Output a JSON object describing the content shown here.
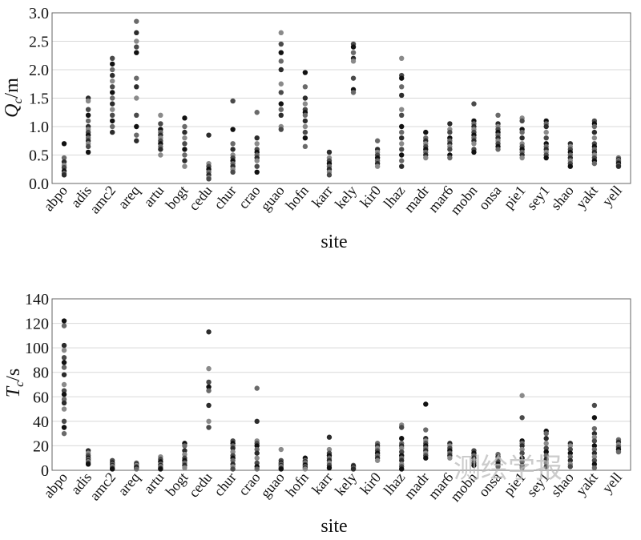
{
  "chart_data": [
    {
      "type": "scatter",
      "ylabel_main": "Q",
      "ylabel_sub": "c",
      "ylabel_unit": "/m",
      "xlabel": "site",
      "ylim": [
        0,
        3.0
      ],
      "yticks": [
        "0.0",
        "0.5",
        "1.0",
        "1.5",
        "2.0",
        "2.5",
        "3.0"
      ],
      "grid": true,
      "categories": [
        "abpo",
        "adis",
        "amc2",
        "areq",
        "artu",
        "bogt",
        "cedu",
        "chur",
        "crao",
        "guao",
        "hofn",
        "karr",
        "kely",
        "kir0",
        "lhaz",
        "madr",
        "mar6",
        "mobn",
        "onsa",
        "pie1",
        "sey1",
        "shao",
        "yakt",
        "yell"
      ],
      "values": [
        [
          0.7,
          0.45,
          0.38,
          0.32,
          0.28,
          0.22,
          0.18,
          0.15
        ],
        [
          1.5,
          1.45,
          1.3,
          1.2,
          1.1,
          1.0,
          0.95,
          0.9,
          0.85,
          0.8,
          0.75,
          0.7,
          0.65,
          0.55
        ],
        [
          2.2,
          2.1,
          2.0,
          1.9,
          1.8,
          1.7,
          1.6,
          1.5,
          1.4,
          1.3,
          1.2,
          1.1,
          1.0,
          0.9
        ],
        [
          2.85,
          2.65,
          2.5,
          2.4,
          2.3,
          1.85,
          1.7,
          1.5,
          1.2,
          1.0,
          0.85,
          0.75
        ],
        [
          1.2,
          1.05,
          0.95,
          0.9,
          0.85,
          0.8,
          0.75,
          0.7,
          0.65,
          0.6,
          0.5
        ],
        [
          1.15,
          1.0,
          0.9,
          0.8,
          0.7,
          0.6,
          0.5,
          0.4,
          0.3
        ],
        [
          0.85,
          0.35,
          0.3,
          0.25,
          0.2,
          0.15,
          0.1,
          0.08
        ],
        [
          1.45,
          0.95,
          0.7,
          0.6,
          0.5,
          0.45,
          0.4,
          0.35,
          0.3,
          0.25,
          0.2
        ],
        [
          1.25,
          0.8,
          0.7,
          0.6,
          0.55,
          0.5,
          0.45,
          0.4,
          0.3,
          0.2
        ],
        [
          2.65,
          2.45,
          2.3,
          2.15,
          2.0,
          1.75,
          1.6,
          1.4,
          1.3,
          1.2,
          1.0,
          0.95
        ],
        [
          1.95,
          1.7,
          1.5,
          1.4,
          1.3,
          1.25,
          1.2,
          1.1,
          1.0,
          0.9,
          0.8,
          0.65
        ],
        [
          0.55,
          0.45,
          0.4,
          0.35,
          0.3,
          0.25,
          0.2,
          0.15
        ],
        [
          2.45,
          2.4,
          2.3,
          2.2,
          2.15,
          1.85,
          1.65,
          1.6
        ],
        [
          0.75,
          0.6,
          0.55,
          0.5,
          0.45,
          0.4,
          0.35,
          0.3
        ],
        [
          2.2,
          1.9,
          1.85,
          1.7,
          1.55,
          1.3,
          1.2,
          1.0,
          0.9,
          0.8,
          0.7,
          0.6,
          0.5,
          0.4,
          0.3
        ],
        [
          0.9,
          0.8,
          0.75,
          0.7,
          0.65,
          0.6,
          0.55,
          0.5,
          0.45
        ],
        [
          1.05,
          0.95,
          0.9,
          0.8,
          0.75,
          0.7,
          0.65,
          0.6,
          0.5,
          0.45
        ],
        [
          1.4,
          1.1,
          1.05,
          1.0,
          0.95,
          0.9,
          0.85,
          0.8,
          0.75,
          0.7,
          0.6,
          0.55
        ],
        [
          1.2,
          1.05,
          1.0,
          0.95,
          0.9,
          0.85,
          0.8,
          0.75,
          0.7,
          0.65,
          0.6
        ],
        [
          1.15,
          1.1,
          0.95,
          0.9,
          0.8,
          0.7,
          0.65,
          0.6,
          0.55,
          0.5,
          0.45
        ],
        [
          1.1,
          1.05,
          1.0,
          0.9,
          0.8,
          0.7,
          0.65,
          0.6,
          0.55,
          0.5,
          0.45
        ],
        [
          0.7,
          0.65,
          0.6,
          0.55,
          0.5,
          0.45,
          0.4,
          0.35,
          0.3
        ],
        [
          1.1,
          1.05,
          1.0,
          0.9,
          0.8,
          0.7,
          0.65,
          0.6,
          0.55,
          0.5,
          0.45,
          0.4,
          0.35
        ],
        [
          0.45,
          0.42,
          0.4,
          0.38,
          0.35,
          0.32,
          0.3
        ]
      ]
    },
    {
      "type": "scatter",
      "ylabel_main": "T",
      "ylabel_sub": "c",
      "ylabel_unit": "/s",
      "xlabel": "site",
      "ylim": [
        0,
        140
      ],
      "yticks": [
        "0",
        "20",
        "40",
        "60",
        "80",
        "100",
        "120",
        "140"
      ],
      "grid": true,
      "categories": [
        "abpo",
        "adis",
        "amc2",
        "areq",
        "artu",
        "bogt",
        "cedu",
        "chur",
        "crao",
        "guao",
        "hofn",
        "karr",
        "kely",
        "kir0",
        "lhaz",
        "madr",
        "mar6",
        "mobn",
        "onsa",
        "pie1",
        "sey1",
        "shao",
        "yakt",
        "yell"
      ],
      "values": [
        [
          122,
          118,
          102,
          98,
          92,
          88,
          84,
          78,
          70,
          65,
          62,
          58,
          55,
          50,
          40,
          35,
          30
        ],
        [
          16,
          14,
          12,
          10,
          9,
          8,
          7,
          6,
          5
        ],
        [
          8,
          6,
          5,
          4,
          3,
          2,
          1
        ],
        [
          6,
          5,
          4,
          3,
          2,
          1
        ],
        [
          11,
          9,
          7,
          5,
          4,
          3,
          2,
          1
        ],
        [
          22,
          20,
          16,
          13,
          10,
          8,
          6,
          4,
          2
        ],
        [
          113,
          83,
          72,
          68,
          65,
          53,
          40,
          35
        ],
        [
          24,
          22,
          20,
          18,
          15,
          12,
          10,
          8,
          5,
          3,
          1
        ],
        [
          67,
          40,
          24,
          22,
          20,
          17,
          14,
          10,
          6,
          3,
          1
        ],
        [
          17,
          8,
          6,
          5,
          4,
          3,
          2,
          1
        ],
        [
          10,
          8,
          7,
          6,
          5,
          4,
          3,
          2,
          1
        ],
        [
          27,
          17,
          14,
          12,
          10,
          8,
          6,
          4,
          2
        ],
        [
          4,
          3,
          2,
          1
        ],
        [
          22,
          20,
          18,
          16,
          14,
          12,
          10,
          8
        ],
        [
          37,
          35,
          26,
          22,
          20,
          18,
          15,
          12,
          10,
          8,
          5,
          3,
          1
        ],
        [
          54,
          33,
          26,
          24,
          22,
          20,
          18,
          16,
          14,
          12,
          10
        ],
        [
          22,
          20,
          18,
          16,
          14,
          12,
          10
        ],
        [
          16,
          14,
          12,
          10,
          8,
          6,
          4
        ],
        [
          13,
          11,
          9,
          7,
          5,
          3
        ],
        [
          61,
          43,
          24,
          22,
          20,
          17,
          14,
          10,
          7,
          4,
          2
        ],
        [
          32,
          30,
          26,
          22,
          18,
          15,
          12,
          9,
          6,
          3
        ],
        [
          22,
          20,
          17,
          14,
          11,
          8,
          5,
          3
        ],
        [
          53,
          43,
          34,
          30,
          27,
          24,
          20,
          17,
          14,
          11,
          8,
          5,
          2
        ],
        [
          25,
          23,
          21,
          19,
          17,
          15
        ]
      ]
    }
  ],
  "watermark": "测绘学报"
}
